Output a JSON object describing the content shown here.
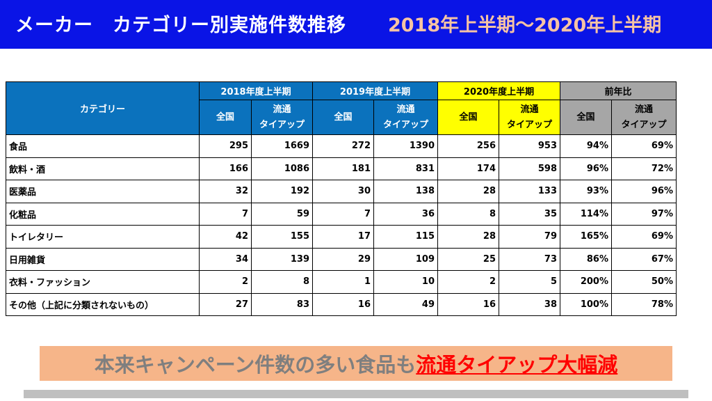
{
  "header": {
    "title": "メーカー　カテゴリー別実施件数推移",
    "period": "2018年上半期～2020年上半期"
  },
  "table": {
    "category_header": "カテゴリー",
    "groups": [
      {
        "label": "2018年度上半期",
        "sub_all": "全国",
        "sub_tie1": "流通",
        "sub_tie2": "タイアップ"
      },
      {
        "label": "2019年度上半期",
        "sub_all": "全国",
        "sub_tie1": "流通",
        "sub_tie2": "タイアップ"
      },
      {
        "label": "2020年度上半期",
        "sub_all": "全国",
        "sub_tie1": "流通",
        "sub_tie2": "タイアップ"
      },
      {
        "label": "前年比",
        "sub_all": "全国",
        "sub_tie1": "流通",
        "sub_tie2": "タイアップ"
      }
    ],
    "rows": [
      {
        "category": "食品",
        "c": [
          "295",
          "1669",
          "272",
          "1390",
          "256",
          "953",
          "94%",
          "69%"
        ]
      },
      {
        "category": "飲料・酒",
        "c": [
          "166",
          "1086",
          "181",
          "831",
          "174",
          "598",
          "96%",
          "72%"
        ]
      },
      {
        "category": "医薬品",
        "c": [
          "32",
          "192",
          "30",
          "138",
          "28",
          "133",
          "93%",
          "96%"
        ]
      },
      {
        "category": "化粧品",
        "c": [
          "7",
          "59",
          "7",
          "36",
          "8",
          "35",
          "114%",
          "97%"
        ]
      },
      {
        "category": "トイレタリー",
        "c": [
          "42",
          "155",
          "17",
          "115",
          "28",
          "79",
          "165%",
          "69%"
        ]
      },
      {
        "category": "日用雑貨",
        "c": [
          "34",
          "139",
          "29",
          "109",
          "25",
          "73",
          "86%",
          "67%"
        ]
      },
      {
        "category": "衣料・ファッション",
        "c": [
          "2",
          "8",
          "1",
          "10",
          "2",
          "5",
          "200%",
          "50%"
        ]
      },
      {
        "category": "その他（上記に分類されないもの）",
        "c": [
          "27",
          "83",
          "16",
          "49",
          "16",
          "38",
          "100%",
          "78%"
        ]
      }
    ]
  },
  "banner": {
    "lead": "本来キャンペーン件数の多い食品も",
    "highlight": "流通タイアップ大幅減"
  },
  "colors": {
    "header_bg": "#0a14e6",
    "period_text": "#f6c3a4",
    "col_header_bg": "#0b72bd",
    "highlight_year_bg": "#ffff00",
    "yoy_header_bg": "#a6a6a6",
    "banner_bg": "#f6b589",
    "banner_highlight": "#ff0000"
  }
}
